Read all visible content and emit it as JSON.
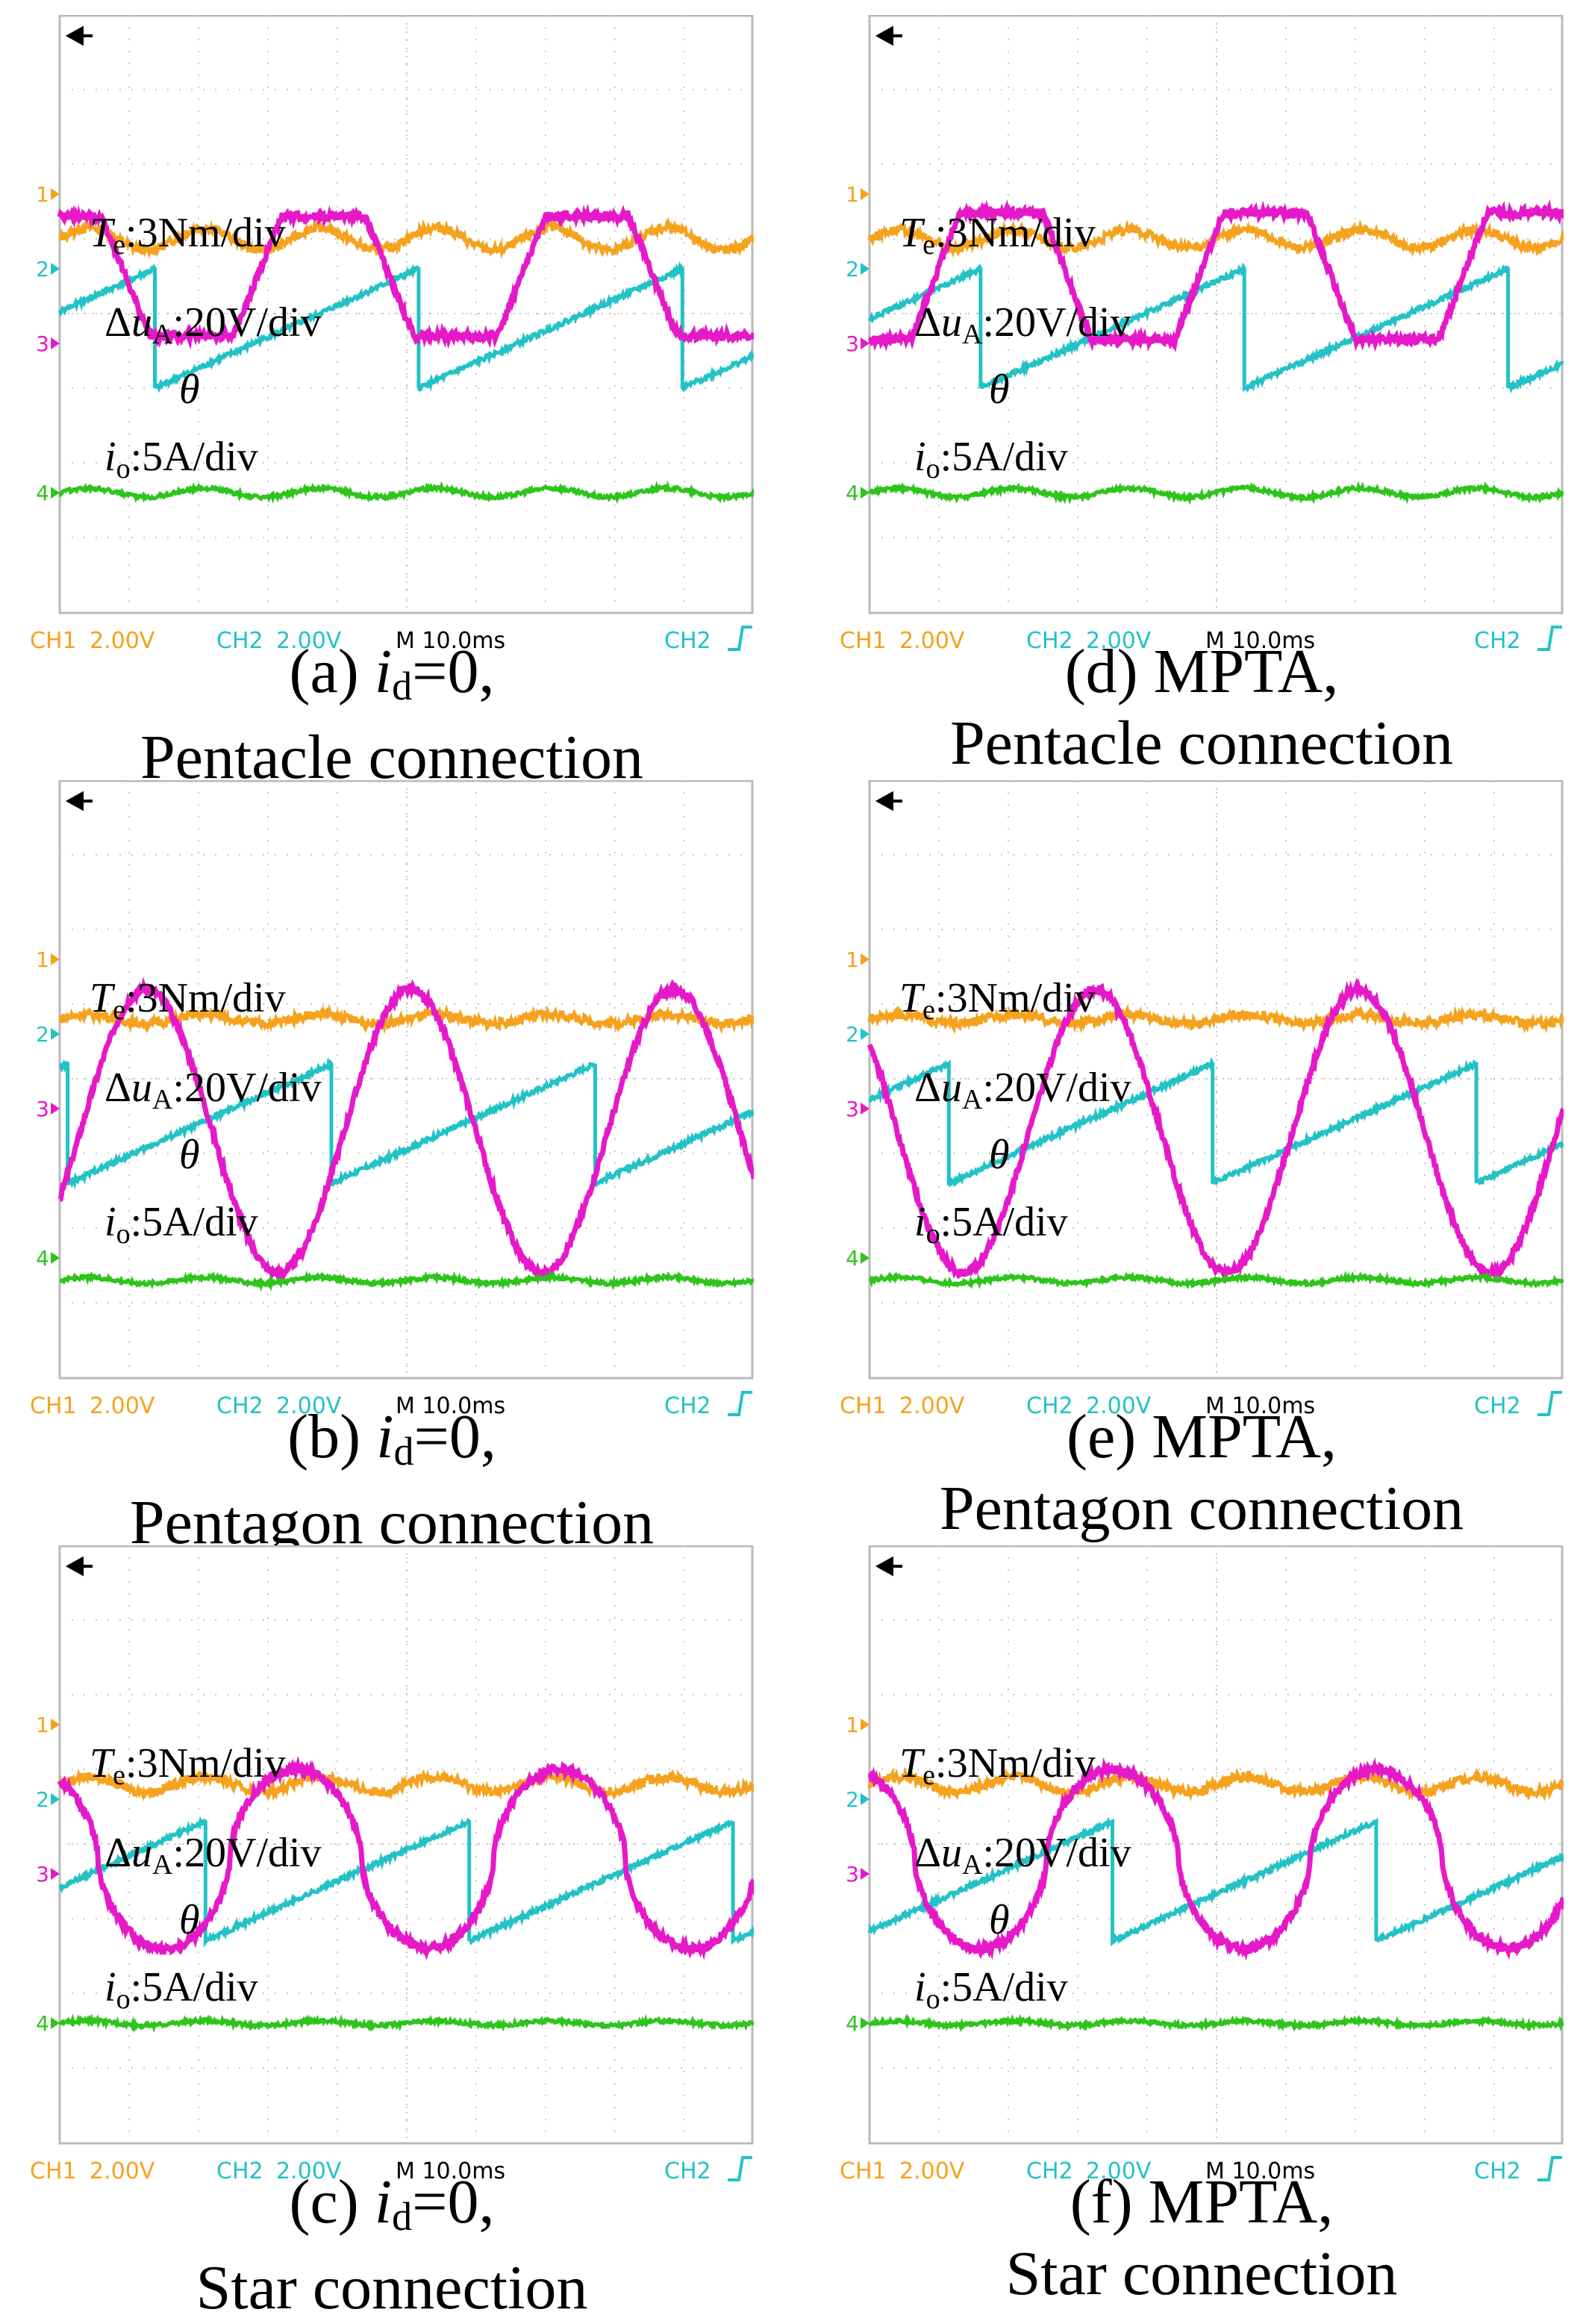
{
  "colors": {
    "torque": "#f5a21e",
    "angle": "#22c2c6",
    "voltage": "#e619c8",
    "current": "#2ec41c",
    "grid": "#c8c8c8",
    "frame": "#b9b9b9",
    "status_text": "#f5a21e",
    "status_text_ch2": "#22c2c6"
  },
  "status_bar": {
    "ch1": "CH1",
    "ch1_scale": "2.00V",
    "ch2": "CH2",
    "ch2_scale": "2.00V",
    "timebase": "M 10.0ms",
    "trigger": "CH2"
  },
  "channel_markers": [
    "1",
    "2",
    "3",
    "4"
  ],
  "chart_data": [
    {
      "type": "line",
      "panel": "a",
      "caption": {
        "prefix": "(a) ",
        "var": "i",
        "sub": "d",
        "suffix": "=0,",
        "line2": "Pentacle connection"
      },
      "labels": {
        "torque": {
          "var": "T",
          "sub": "e",
          "text": ":3Nm/div"
        },
        "angle": {
          "var": "θ"
        },
        "voltage": {
          "prefix": "Δ",
          "var": "u",
          "sub": "A",
          "text": ":20V/div"
        },
        "current": {
          "var": "i",
          "sub": "o",
          "text": ":5A/div"
        }
      },
      "series": {
        "torque": {
          "level": 5.0,
          "ripple": 0.15,
          "harmonic": 6
        },
        "angle": {
          "low": 2.0,
          "high": 3.6,
          "period": 3.8,
          "phase": 0.64
        },
        "voltage": {
          "type": "trapezoid",
          "center": 1.2,
          "amplitude": 0.8,
          "period": 3.8,
          "peak_at": 3.8
        },
        "current": {
          "level": -1.0,
          "ripple": 0.06,
          "harmonic": 6
        }
      }
    },
    {
      "type": "line",
      "panel": "b",
      "caption": {
        "prefix": "(b) ",
        "var": "i",
        "sub": "d",
        "suffix": "=0,",
        "line2": "Pentagon connection"
      },
      "labels": {
        "torque": {
          "var": "T",
          "sub": "e",
          "text": ":3Nm/div"
        },
        "angle": {
          "var": "θ"
        },
        "voltage": {
          "prefix": "Δ",
          "var": "u",
          "sub": "A",
          "text": ":20V/div"
        },
        "current": {
          "var": "i",
          "sub": "o",
          "text": ":5A/div"
        }
      },
      "series": {
        "torque": {
          "level": 4.8,
          "ripple": 0.06,
          "harmonic": 6
        },
        "angle": {
          "low": 1.6,
          "high": 3.2,
          "period": 3.8,
          "phase": 0.97
        },
        "voltage": {
          "type": "sine",
          "center": 0.0,
          "amplitude": 1.9,
          "period": 3.8,
          "peak_at": 1.25
        },
        "current": {
          "level": -1.3,
          "ripple": 0.04,
          "harmonic": 6
        }
      }
    },
    {
      "type": "line",
      "panel": "c",
      "caption": {
        "prefix": "(c) ",
        "var": "i",
        "sub": "d",
        "suffix": "=0,",
        "line2": "Star connection"
      },
      "labels": {
        "torque": {
          "var": "T",
          "sub": "e",
          "text": ":3Nm/div"
        },
        "angle": {
          "var": "θ"
        },
        "voltage": {
          "prefix": "Δ",
          "var": "u",
          "sub": "A",
          "text": ":20V/div"
        },
        "current": {
          "var": "i",
          "sub": "o",
          "text": ":5A/div"
        }
      },
      "series": {
        "torque": {
          "level": 4.8,
          "ripple": 0.1,
          "harmonic": 6
        },
        "angle": {
          "low": 1.7,
          "high": 3.3,
          "period": 3.8,
          "phase": 0.45
        },
        "voltage": {
          "type": "rounded",
          "center": 0.5,
          "amplitude": 1.2,
          "period": 3.8,
          "peak_at": 3.4
        },
        "current": {
          "level": -1.0,
          "ripple": 0.03,
          "harmonic": 6
        }
      }
    },
    {
      "type": "line",
      "panel": "d",
      "caption": {
        "prefix": "(d) ",
        "var": "",
        "sub": "",
        "suffix": "MPTA,",
        "line2": "Pentacle connection"
      },
      "labels": {
        "torque": {
          "var": "T",
          "sub": "e",
          "text": ":3Nm/div"
        },
        "angle": {
          "var": "θ"
        },
        "voltage": {
          "prefix": "Δ",
          "var": "u",
          "sub": "A",
          "text": ":20V/div"
        },
        "current": {
          "var": "i",
          "sub": "o",
          "text": ":5A/div"
        }
      },
      "series": {
        "torque": {
          "level": 5.0,
          "ripple": 0.12,
          "harmonic": 6
        },
        "angle": {
          "low": 2.0,
          "high": 3.6,
          "period": 3.8,
          "phase": 0.58
        },
        "voltage": {
          "type": "trapezoid",
          "center": 1.2,
          "amplitude": 0.85,
          "period": 3.8,
          "peak_at": 1.9
        },
        "current": {
          "level": -1.0,
          "ripple": 0.06,
          "harmonic": 6
        }
      }
    },
    {
      "type": "line",
      "panel": "e",
      "caption": {
        "prefix": "(e) ",
        "var": "",
        "sub": "",
        "suffix": "MPTA,",
        "line2": "Pentagon connection"
      },
      "labels": {
        "torque": {
          "var": "T",
          "sub": "e",
          "text": ":3Nm/div"
        },
        "angle": {
          "var": "θ"
        },
        "voltage": {
          "prefix": "Δ",
          "var": "u",
          "sub": "A",
          "text": ":20V/div"
        },
        "current": {
          "var": "i",
          "sub": "o",
          "text": ":5A/div"
        }
      },
      "series": {
        "torque": {
          "level": 4.8,
          "ripple": 0.06,
          "harmonic": 6
        },
        "angle": {
          "low": 1.6,
          "high": 3.2,
          "period": 3.8,
          "phase": 0.7
        },
        "voltage": {
          "type": "sine",
          "center": 0.0,
          "amplitude": 1.9,
          "period": 3.8,
          "peak_at": 3.25
        },
        "current": {
          "level": -1.3,
          "ripple": 0.04,
          "harmonic": 6
        }
      }
    },
    {
      "type": "line",
      "panel": "f",
      "caption": {
        "prefix": "(f) ",
        "var": "",
        "sub": "",
        "suffix": "MPTA,",
        "line2": "Star connection"
      },
      "labels": {
        "torque": {
          "var": "T",
          "sub": "e",
          "text": ":3Nm/div"
        },
        "angle": {
          "var": "θ"
        },
        "voltage": {
          "prefix": "Δ",
          "var": "u",
          "sub": "A",
          "text": ":20V/div"
        },
        "current": {
          "var": "i",
          "sub": "o",
          "text": ":5A/div"
        }
      },
      "series": {
        "torque": {
          "level": 4.8,
          "ripple": 0.1,
          "harmonic": 6
        },
        "angle": {
          "low": 1.7,
          "high": 3.3,
          "period": 3.8,
          "phase": 0.08
        },
        "voltage": {
          "type": "rounded",
          "center": 0.5,
          "amplitude": 1.2,
          "period": 3.8,
          "peak_at": 3.5
        },
        "current": {
          "level": -1.0,
          "ripple": 0.03,
          "harmonic": 6
        }
      }
    }
  ]
}
